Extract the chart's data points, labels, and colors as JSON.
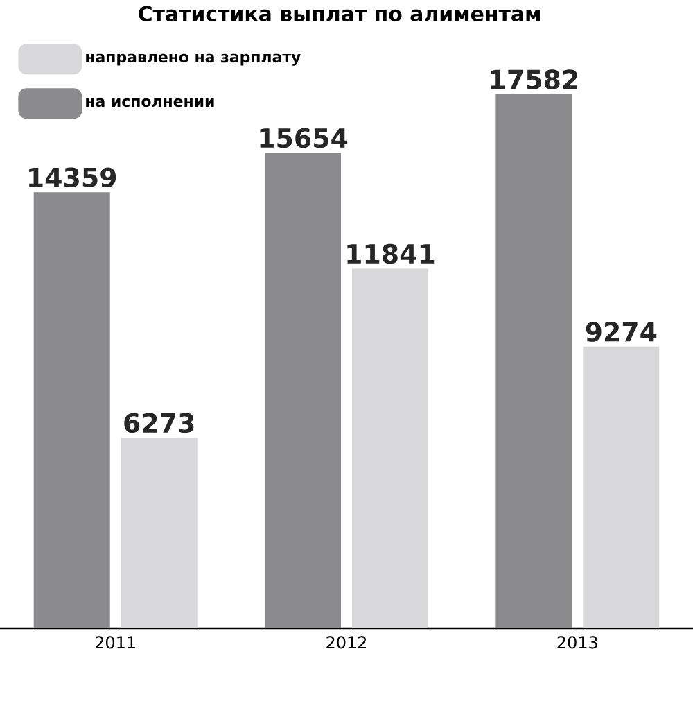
{
  "chart_data": {
    "type": "bar",
    "title": "Статистика выплат по алиментам",
    "categories": [
      "2011",
      "2012",
      "2013"
    ],
    "series": [
      {
        "name": "на исполнении",
        "color": "#8b8b8d",
        "values": [
          14359,
          15654,
          17582
        ]
      },
      {
        "name": "направлено на зарплату",
        "color": "#d8d8da",
        "values": [
          6273,
          11841,
          9274
        ]
      }
    ],
    "data_labels": true,
    "legend": "top left",
    "grid": false
  }
}
